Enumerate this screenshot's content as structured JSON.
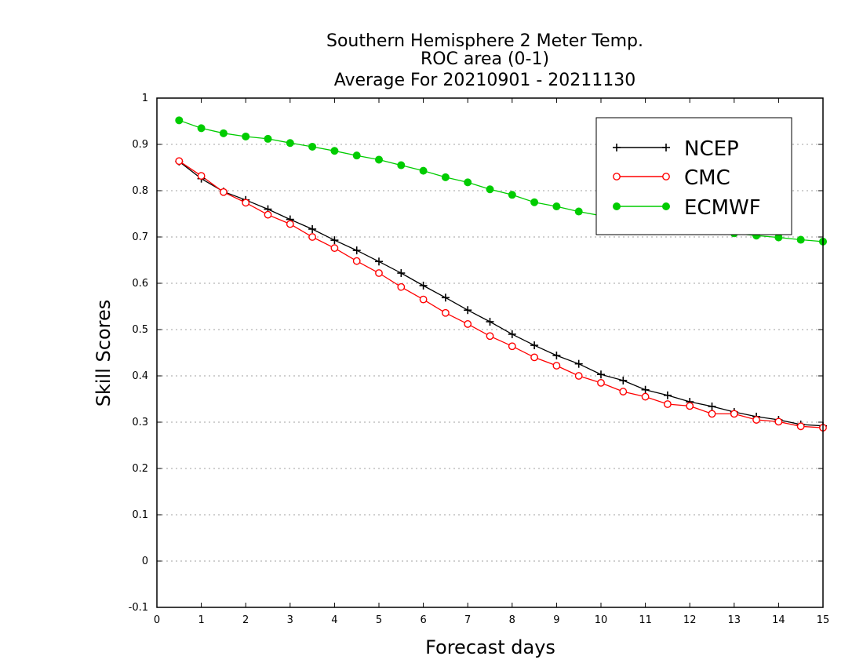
{
  "chart_data": {
    "type": "line",
    "title_lines": [
      "Southern Hemisphere 2 Meter Temp.",
      "ROC area (0-1)",
      "Average For 20210901 - 20211130"
    ],
    "xlabel": "Forecast days",
    "ylabel": "Skill Scores",
    "xlim": [
      0,
      15
    ],
    "ylim": [
      -0.1,
      1
    ],
    "x_ticks": [
      "0",
      "1",
      "2",
      "3",
      "4",
      "5",
      "6",
      "7",
      "8",
      "9",
      "10",
      "11",
      "12",
      "13",
      "14",
      "15"
    ],
    "y_ticks": [
      "-0.1",
      "0",
      "0.1",
      "0.2",
      "0.3",
      "0.4",
      "0.5",
      "0.6",
      "0.7",
      "0.8",
      "0.9",
      "1"
    ],
    "grid": "horizontal dotted",
    "legend_position": "top-right",
    "x": [
      0.5,
      1,
      1.5,
      2,
      2.5,
      3,
      3.5,
      4,
      4.5,
      5,
      5.5,
      6,
      6.5,
      7,
      7.5,
      8,
      8.5,
      9,
      9.5,
      10,
      10.5,
      11,
      11.5,
      12,
      12.5,
      13,
      13.5,
      14,
      14.5,
      15
    ],
    "series": [
      {
        "name": "NCEP",
        "color": "#000000",
        "marker": "plus",
        "values": [
          0.863,
          0.826,
          0.798,
          0.78,
          0.76,
          0.738,
          0.717,
          0.693,
          0.671,
          0.647,
          0.622,
          0.595,
          0.569,
          0.542,
          0.517,
          0.49,
          0.466,
          0.444,
          0.426,
          0.403,
          0.39,
          0.37,
          0.358,
          0.344,
          0.334,
          0.322,
          0.312,
          0.305,
          0.295,
          0.292
        ]
      },
      {
        "name": "CMC",
        "color": "#ff0000",
        "marker": "open-circle",
        "values": [
          0.864,
          0.832,
          0.797,
          0.774,
          0.748,
          0.728,
          0.7,
          0.676,
          0.648,
          0.622,
          0.592,
          0.565,
          0.536,
          0.512,
          0.486,
          0.464,
          0.44,
          0.422,
          0.4,
          0.385,
          0.366,
          0.355,
          0.339,
          0.335,
          0.318,
          0.318,
          0.305,
          0.301,
          0.291,
          0.288
        ]
      },
      {
        "name": "ECMWF",
        "color": "#00cc00",
        "marker": "filled-circle",
        "values": [
          0.952,
          0.935,
          0.924,
          0.917,
          0.912,
          0.903,
          0.895,
          0.886,
          0.876,
          0.867,
          0.855,
          0.843,
          0.829,
          0.818,
          0.803,
          0.791,
          0.775,
          0.766,
          0.755,
          0.746,
          0.738,
          0.73,
          0.724,
          0.718,
          0.713,
          0.708,
          0.703,
          0.699,
          0.694,
          0.69
        ]
      }
    ]
  }
}
